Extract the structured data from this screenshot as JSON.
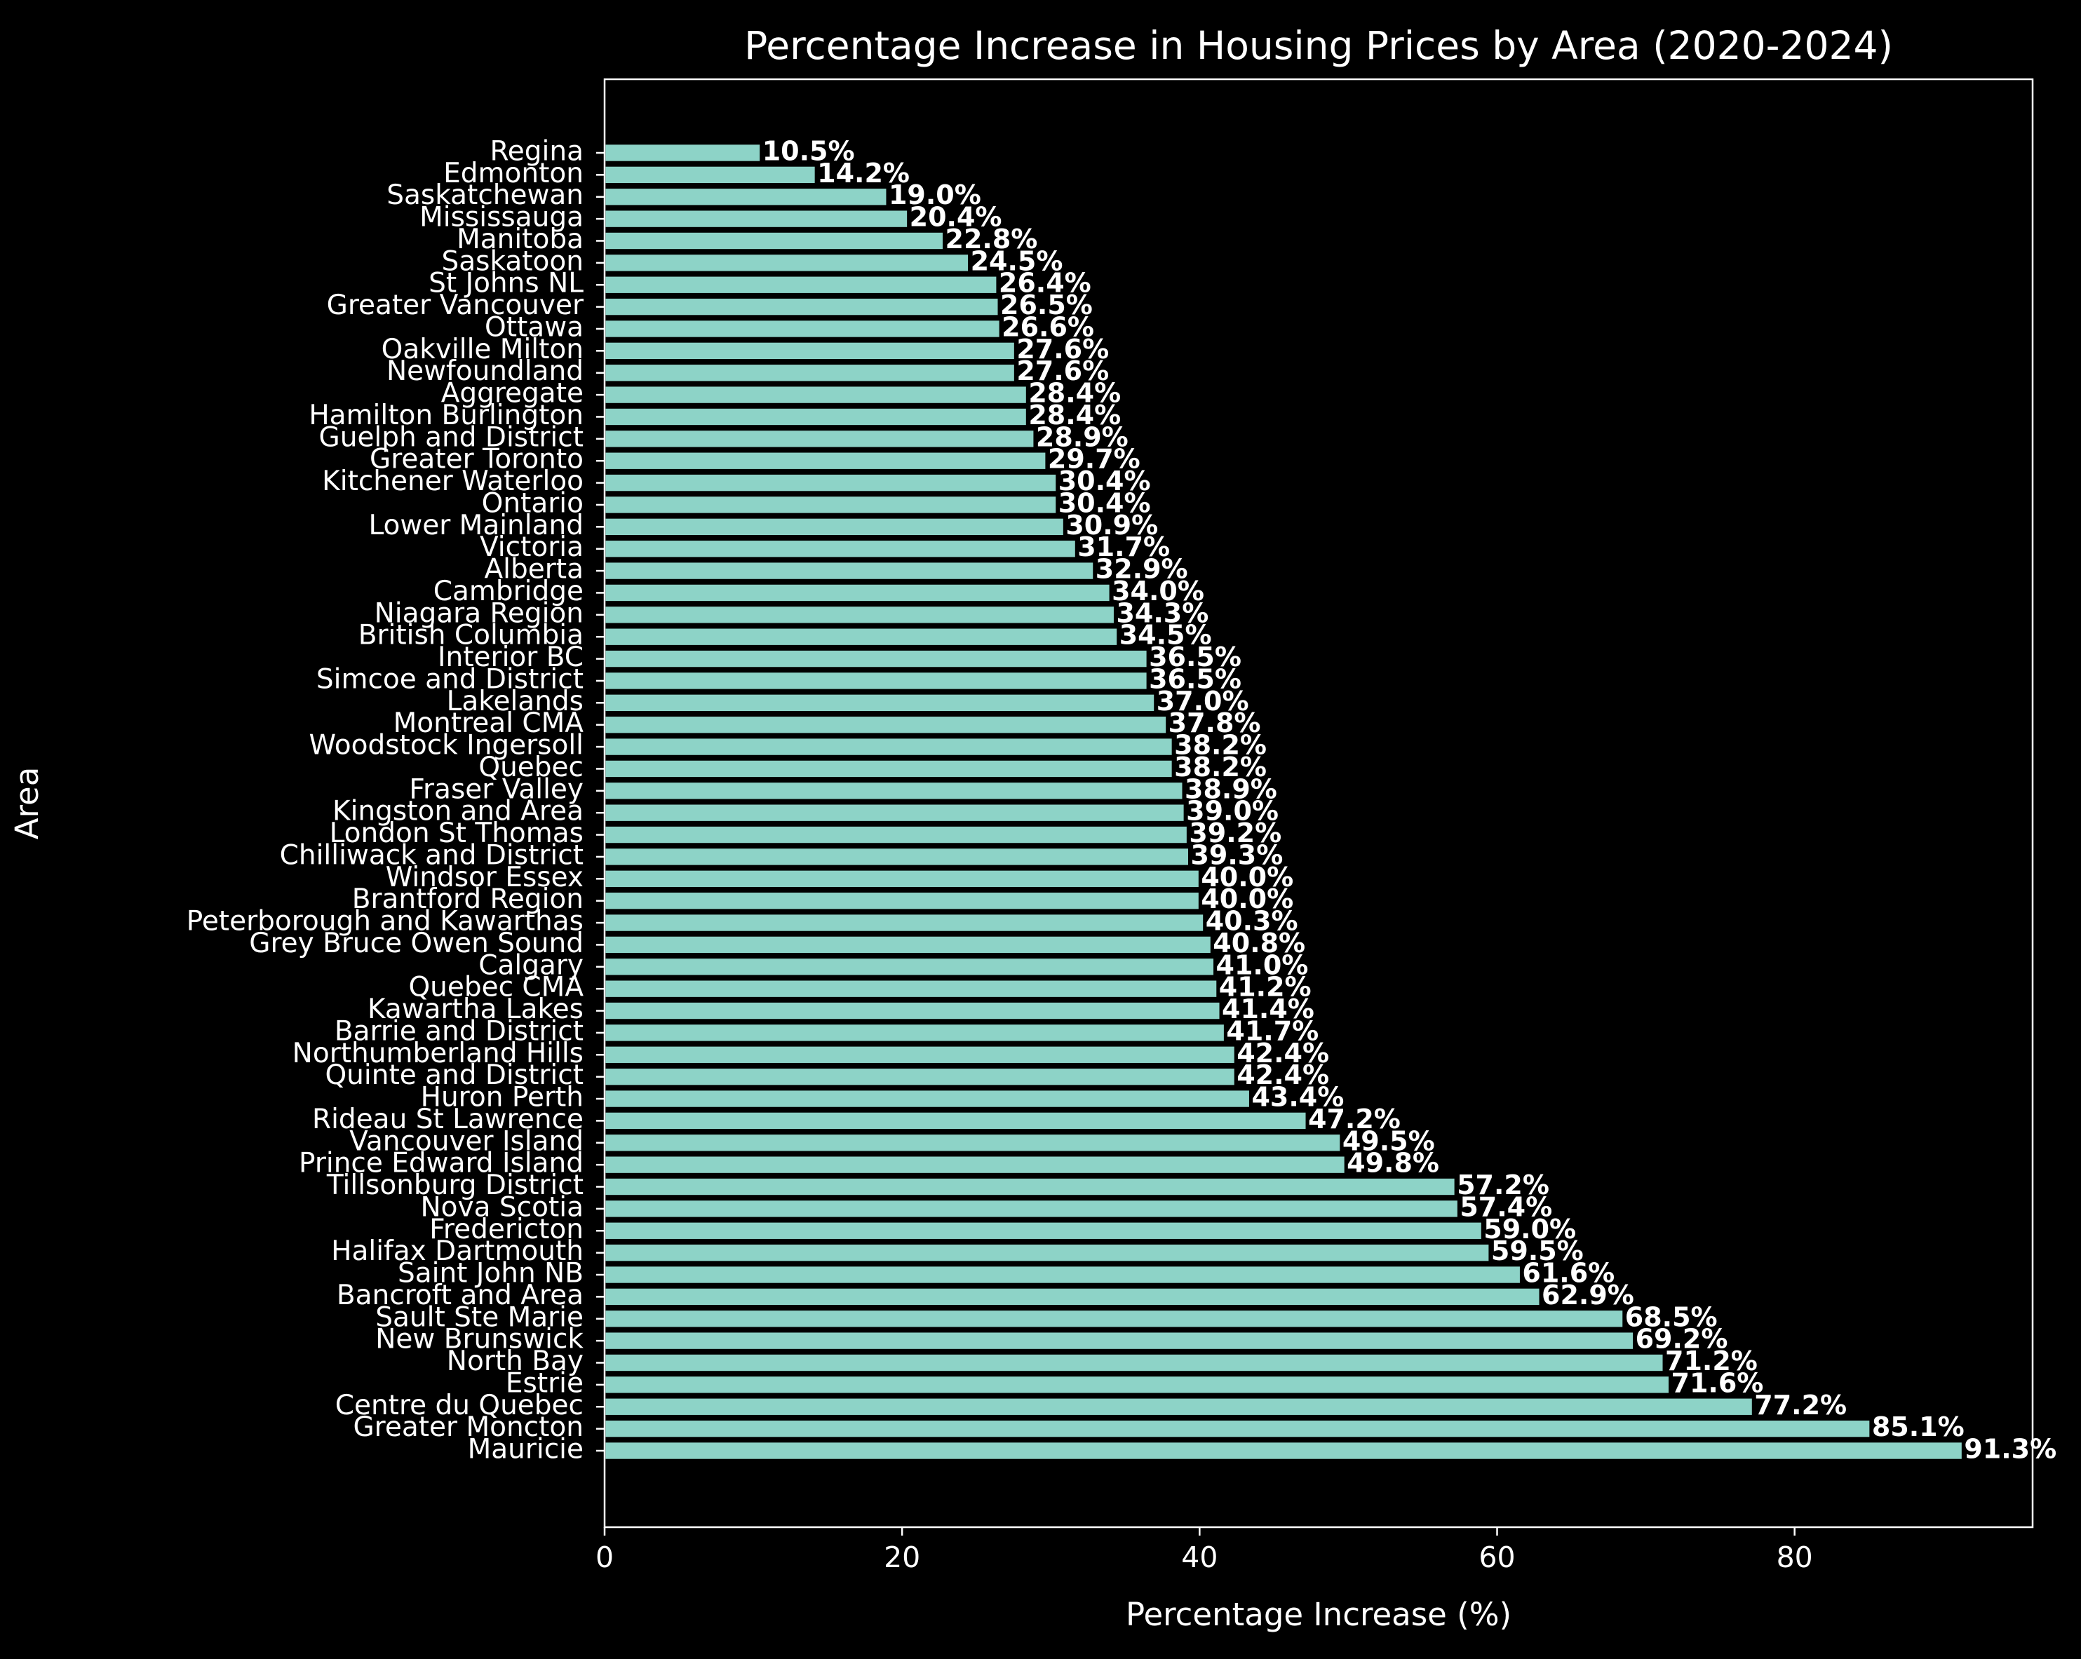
{
  "chart_data": {
    "type": "bar",
    "orientation": "horizontal",
    "title": "Percentage Increase in Housing Prices by Area (2020-2024)",
    "xlabel": "Percentage Increase (%)",
    "ylabel": "Area",
    "xlim": [
      0,
      96
    ],
    "xticks": [
      0,
      20,
      40,
      60,
      80
    ],
    "grid": false,
    "value_label_suffix": "%",
    "bar_color": "#8dd3c7",
    "edge_color": "#000000",
    "background": "#000000",
    "text_color": "#ffffff",
    "categories": [
      "Regina",
      "Edmonton",
      "Saskatchewan",
      "Mississauga",
      "Manitoba",
      "Saskatoon",
      "St Johns NL",
      "Greater Vancouver",
      "Ottawa",
      "Oakville Milton",
      "Newfoundland",
      "Aggregate",
      "Hamilton Burlington",
      "Guelph and District",
      "Greater Toronto",
      "Kitchener Waterloo",
      "Ontario",
      "Lower Mainland",
      "Victoria",
      "Alberta",
      "Cambridge",
      "Niagara Region",
      "British Columbia",
      "Interior BC",
      "Simcoe and District",
      "Lakelands",
      "Montreal CMA",
      "Woodstock Ingersoll",
      "Quebec",
      "Fraser Valley",
      "Kingston and Area",
      "London St Thomas",
      "Chilliwack and District",
      "Windsor Essex",
      "Brantford Region",
      "Peterborough and Kawarthas",
      "Grey Bruce Owen Sound",
      "Calgary",
      "Quebec CMA",
      "Kawartha Lakes",
      "Barrie and District",
      "Northumberland Hills",
      "Quinte and District",
      "Huron Perth",
      "Rideau St Lawrence",
      "Vancouver Island",
      "Prince Edward Island",
      "Tillsonburg District",
      "Nova Scotia",
      "Fredericton",
      "Halifax Dartmouth",
      "Saint John NB",
      "Bancroft and Area",
      "Sault Ste Marie",
      "New Brunswick",
      "North Bay",
      "Estrie",
      "Centre du Quebec",
      "Greater Moncton",
      "Mauricie"
    ],
    "values": [
      10.5,
      14.2,
      19.0,
      20.4,
      22.8,
      24.5,
      26.4,
      26.5,
      26.6,
      27.6,
      27.6,
      28.4,
      28.4,
      28.9,
      29.7,
      30.4,
      30.4,
      30.9,
      31.7,
      32.9,
      34.0,
      34.3,
      34.5,
      36.5,
      36.5,
      37.0,
      37.8,
      38.2,
      38.2,
      38.9,
      39.0,
      39.2,
      39.3,
      40.0,
      40.0,
      40.3,
      40.8,
      41.0,
      41.2,
      41.4,
      41.7,
      42.4,
      42.4,
      43.4,
      47.2,
      49.5,
      49.8,
      57.2,
      57.4,
      59.0,
      59.5,
      61.6,
      62.9,
      68.5,
      69.2,
      71.2,
      71.6,
      77.2,
      85.1,
      91.3
    ]
  }
}
